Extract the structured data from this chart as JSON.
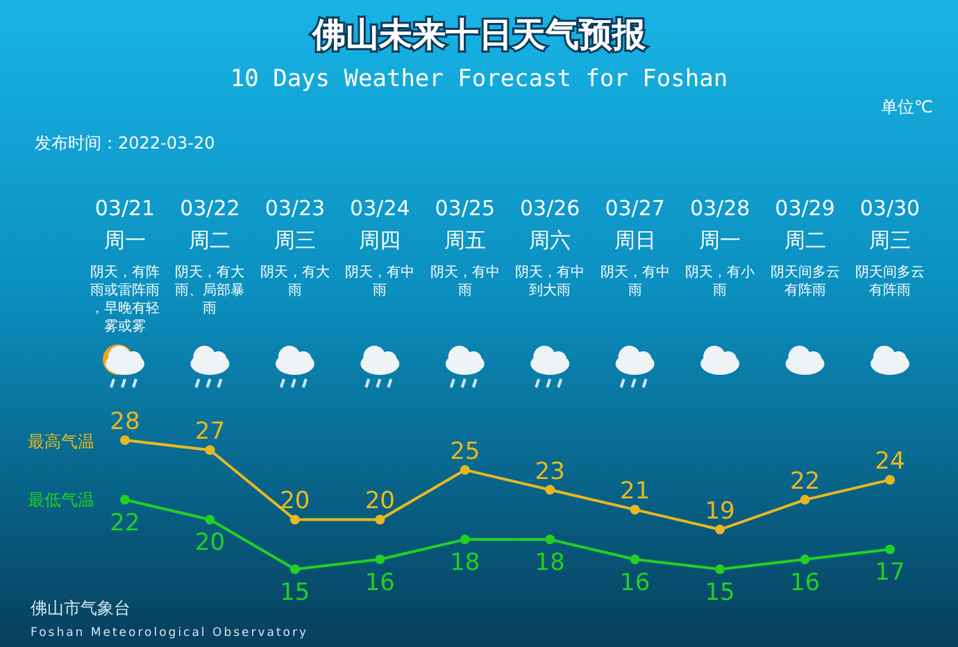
{
  "chart_data": {
    "type": "line",
    "title": "佛山未来十日天气预报",
    "subtitle": "10 Days Weather Forecast for Foshan",
    "categories": [
      "03/21",
      "03/22",
      "03/23",
      "03/24",
      "03/25",
      "03/26",
      "03/27",
      "03/28",
      "03/29",
      "03/30"
    ],
    "series": [
      {
        "name": "最高气温",
        "color": "#e8b820",
        "values": [
          28,
          27,
          20,
          20,
          25,
          23,
          21,
          19,
          22,
          24
        ]
      },
      {
        "name": "最低气温",
        "color": "#22d022",
        "values": [
          22,
          20,
          15,
          16,
          18,
          18,
          16,
          15,
          16,
          17
        ]
      }
    ],
    "data_labels": true,
    "marker": "circle",
    "annotations": [
      "单位℃",
      "发布时间：2022-03-20",
      "佛山市气象台",
      "Foshan Meteorological Observatory",
      "周一",
      "周二",
      "周三",
      "周四",
      "周五",
      "周六",
      "周日",
      "周一",
      "周二",
      "周三",
      "阴天，有阵雨或雷阵雨，早晚有轻雾或雾",
      "阴天，有大雨、局部暴雨",
      "阴天，有大雨",
      "阴天，有中雨",
      "阴天，有中雨",
      "阴天，有中到大雨",
      "阴天，有中雨",
      "阴天，有小雨",
      "阴天间多云有阵雨",
      "阴天间多云有阵雨"
    ]
  }
}
